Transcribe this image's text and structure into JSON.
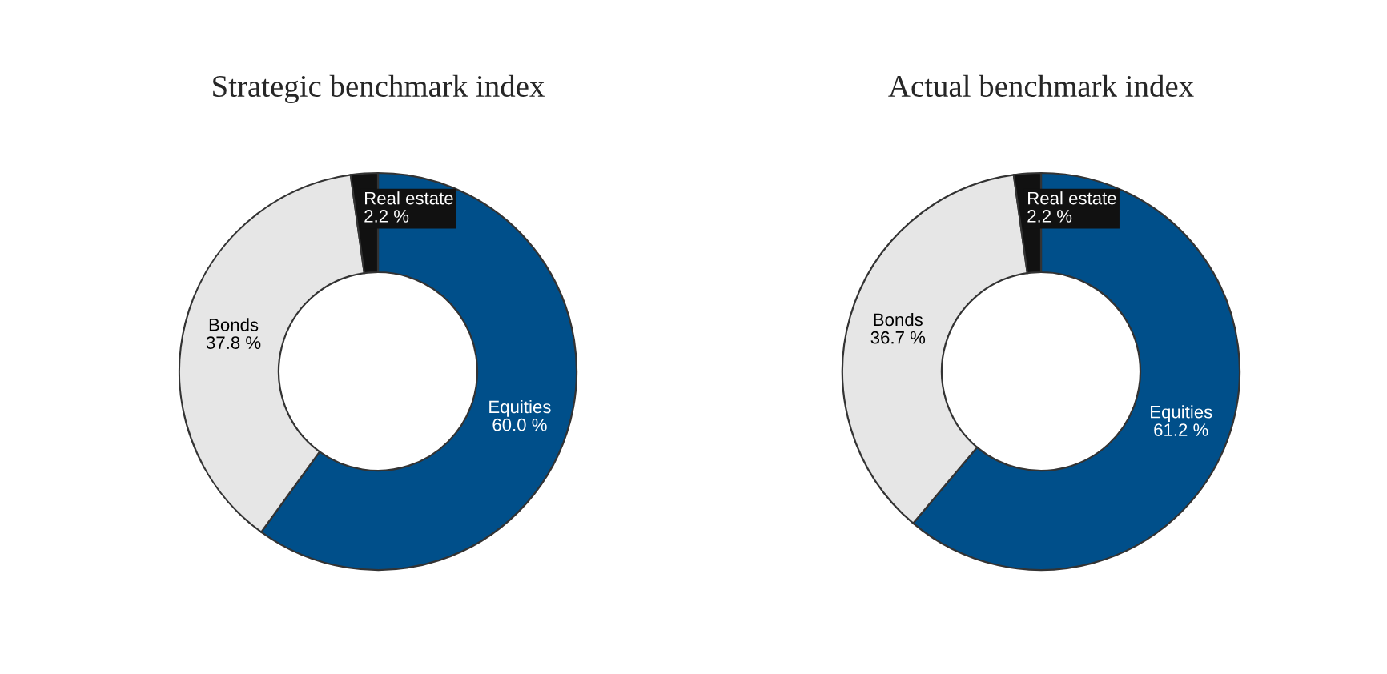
{
  "chart_data": [
    {
      "type": "donut",
      "title": "Strategic benchmark index",
      "categories": [
        "Equities",
        "Bonds",
        "Real estate"
      ],
      "values": [
        60.0,
        37.8,
        2.2
      ],
      "value_labels": [
        "60.0 %",
        "37.8 %",
        "2.2 %"
      ],
      "colors": [
        "#004f8a",
        "#e6e6e6",
        "#111111"
      ],
      "legend": false
    },
    {
      "type": "donut",
      "title": "Actual benchmark index",
      "categories": [
        "Equities",
        "Bonds",
        "Real estate"
      ],
      "values": [
        61.2,
        36.7,
        2.2
      ],
      "value_labels": [
        "61.2 %",
        "36.7 %",
        "2.2 %"
      ],
      "colors": [
        "#004f8a",
        "#e6e6e6",
        "#111111"
      ],
      "legend": false
    }
  ]
}
